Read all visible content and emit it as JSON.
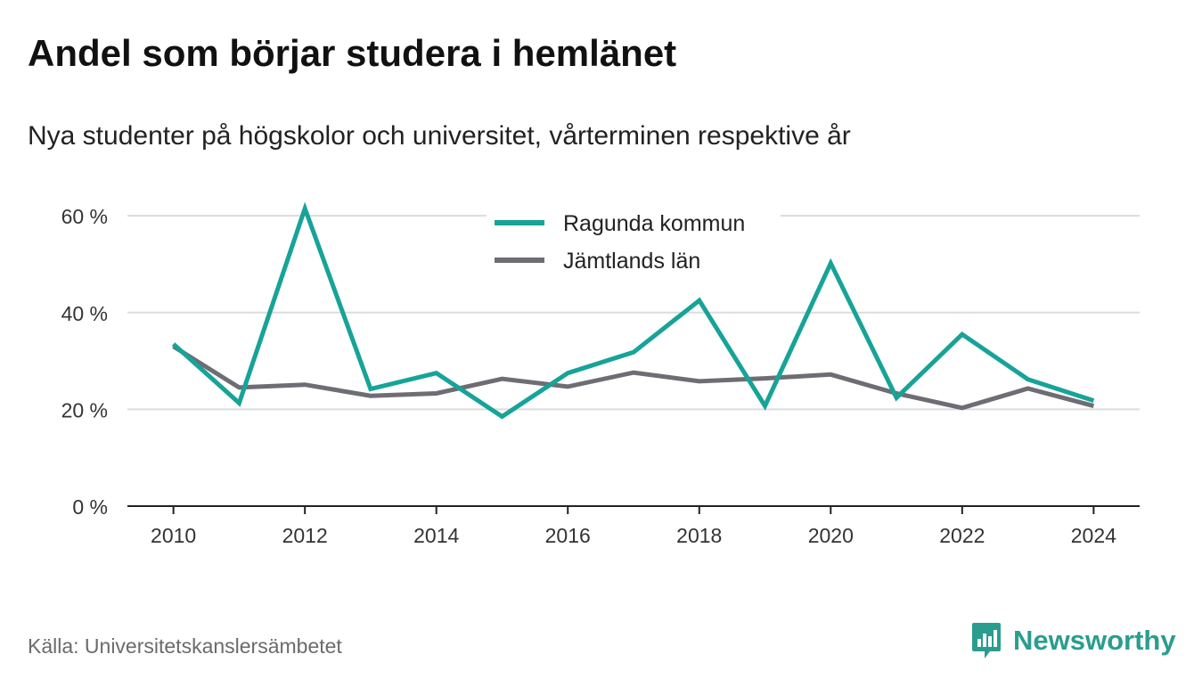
{
  "title": "Andel som börjar studera i hemlänet",
  "subtitle": "Nya studenter på högskolor och universitet, vårterminen respektive år",
  "source": "Källa: Universitetskanslersämbetet",
  "brand": {
    "name": "Newsworthy",
    "icon": "newsworthy-logo-icon",
    "color": "#2a9d8f"
  },
  "chart_data": {
    "type": "line",
    "x": [
      2010,
      2011,
      2012,
      2013,
      2014,
      2015,
      2016,
      2017,
      2018,
      2019,
      2020,
      2021,
      2022,
      2023,
      2024
    ],
    "x_ticks": [
      2010,
      2012,
      2014,
      2016,
      2018,
      2020,
      2022,
      2024
    ],
    "y_ticks": [
      0,
      20,
      40,
      60
    ],
    "y_tick_labels": [
      "0 %",
      "20 %",
      "40 %",
      "60 %"
    ],
    "ylim": [
      0,
      65
    ],
    "xlim": [
      2009.3,
      2024.7
    ],
    "grid": true,
    "legend_position": "top-center",
    "series": [
      {
        "name": "Ragunda kommun",
        "color": "#17a398",
        "values": [
          33.5,
          21.3,
          61.5,
          24.2,
          27.5,
          18.5,
          27.5,
          31.8,
          42.5,
          20.7,
          50.2,
          22.4,
          35.5,
          26.2,
          21.8
        ]
      },
      {
        "name": "Jämtlands län",
        "color": "#6e6d74",
        "values": [
          33.0,
          24.5,
          25.1,
          22.8,
          23.3,
          26.3,
          24.7,
          27.6,
          25.8,
          26.4,
          27.2,
          23.3,
          20.3,
          24.3,
          20.7
        ]
      }
    ]
  }
}
